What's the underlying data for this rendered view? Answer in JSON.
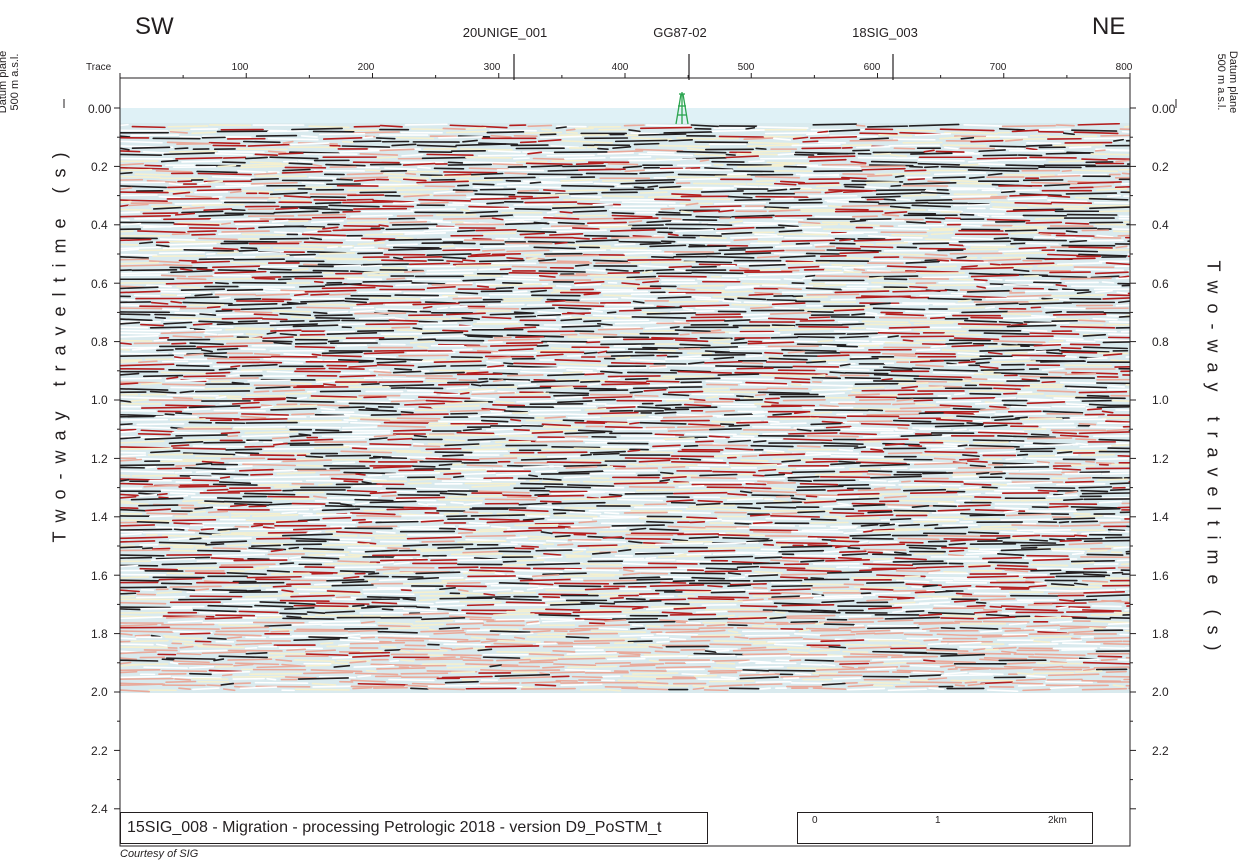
{
  "header": {
    "left_direction": "SW",
    "right_direction": "NE",
    "trace_label": "Trace"
  },
  "wells": [
    {
      "name": "20UNIGE_001",
      "trace": 313
    },
    {
      "name": "GG87-02",
      "trace": 457
    },
    {
      "name": "18SIG_003",
      "trace": 612
    }
  ],
  "trace_axis": {
    "min": 0,
    "max": 800,
    "ticks": [
      "100",
      "200",
      "300",
      "400",
      "500",
      "600",
      "700",
      "800"
    ]
  },
  "time_axis": {
    "label": "Two-way traveltime (s)",
    "ticks": [
      "0.00",
      "0.2",
      "0.4",
      "0.6",
      "0.8",
      "1.0",
      "1.2",
      "1.4",
      "1.6",
      "1.8",
      "2.0",
      "2.2",
      "2.4"
    ],
    "data_end": "2.0"
  },
  "datum": {
    "line1": "Datum plane",
    "line2": "500 m a.s.l."
  },
  "footer": {
    "title": "15SIG_008 - Migration - processing Petrologic 2018 - version D9_PoSTM_t",
    "courtesy": "Courtesy of SIG"
  },
  "scale_bar": {
    "labels": [
      "0",
      "1",
      "2km"
    ]
  },
  "colors": {
    "peak": "#231f20",
    "red": "#b41e1e",
    "trough": "#c8e4ea",
    "sky": "#dff1f6",
    "well": "#2aa44f"
  }
}
